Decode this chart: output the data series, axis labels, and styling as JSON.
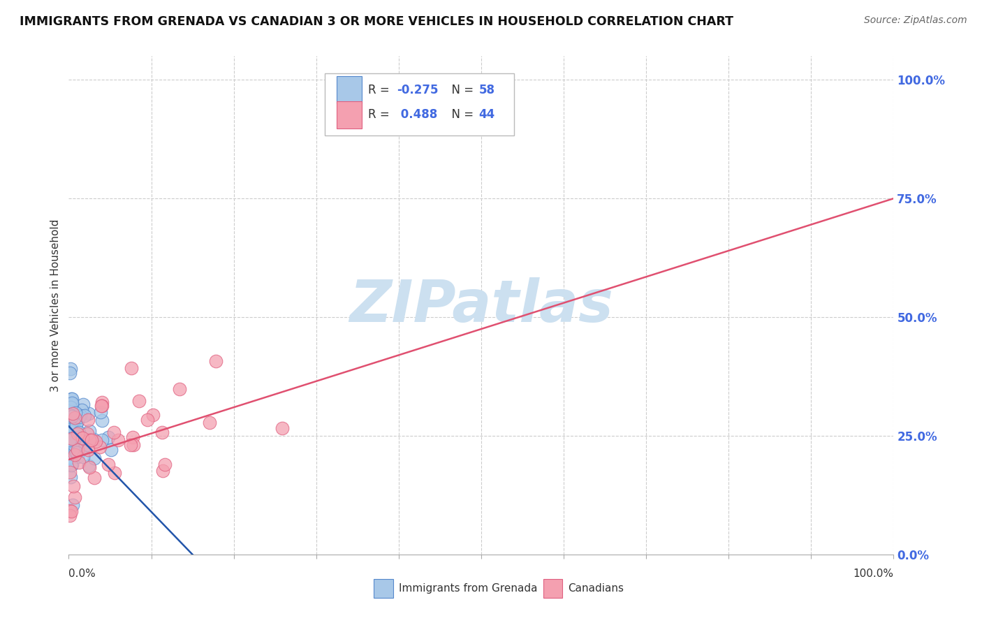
{
  "title": "IMMIGRANTS FROM GRENADA VS CANADIAN 3 OR MORE VEHICLES IN HOUSEHOLD CORRELATION CHART",
  "source": "Source: ZipAtlas.com",
  "ylabel": "3 or more Vehicles in Household",
  "right_yticks": [
    "100.0%",
    "75.0%",
    "50.0%",
    "25.0%",
    "0.0%"
  ],
  "right_ytick_vals": [
    1.0,
    0.75,
    0.5,
    0.25,
    0.0
  ],
  "legend_label1": "Immigrants from Grenada",
  "legend_label2": "Canadians",
  "R1": -0.275,
  "N1": 58,
  "R2": 0.488,
  "N2": 44,
  "color_blue": "#a8c8e8",
  "color_blue_edge": "#5588cc",
  "color_pink": "#f4a0b0",
  "color_pink_edge": "#e06080",
  "color_line_blue": "#2255aa",
  "color_line_pink": "#e05070",
  "watermark_color": "#cce0f0",
  "background_color": "#ffffff",
  "grid_color": "#cccccc",
  "title_color": "#111111",
  "source_color": "#666666",
  "ytick_color": "#4169E1",
  "ylabel_color": "#333333",
  "blue_intercept": 0.27,
  "blue_slope": -1.8,
  "pink_intercept": 0.2,
  "pink_slope": 0.55
}
